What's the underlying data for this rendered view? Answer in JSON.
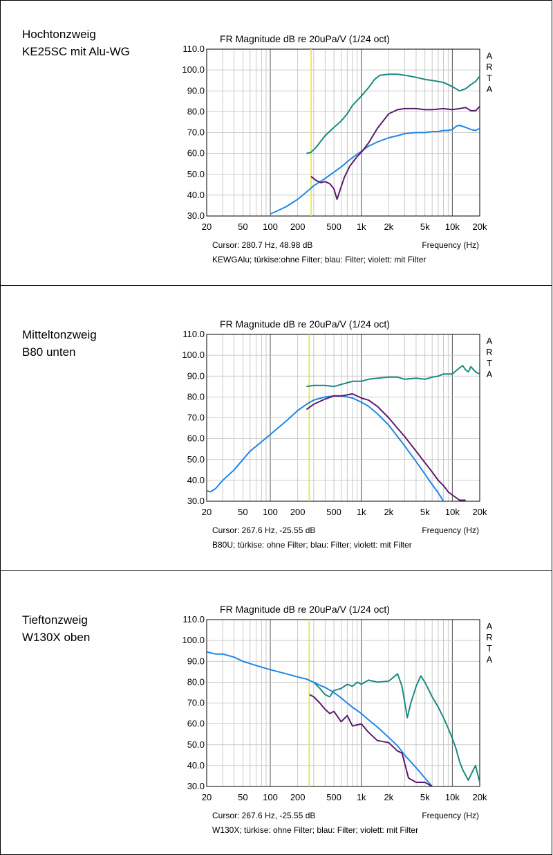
{
  "colors": {
    "tuerkis": "#1a8a80",
    "blau": "#1f86e6",
    "violett": "#5b1a6d",
    "cursor": "#e6e632",
    "grid": "#bdbdbd"
  },
  "panels": [
    {
      "title_line1": "Hochtonzweig",
      "title_line2": "KE25SC mit Alu-WG",
      "chart_data": {
        "type": "line",
        "title": "FR Magnitude dB re 20uPa/V (1/24 oct)",
        "xlabel": "Frequency (Hz)",
        "x_scale": "log",
        "xlim": [
          20,
          20000
        ],
        "ylim": [
          30,
          110
        ],
        "x_ticks": [
          "20",
          "50",
          "100",
          "200",
          "500",
          "1k",
          "2k",
          "5k",
          "10k",
          "20k"
        ],
        "y_ticks": [
          "110.0",
          "100.0",
          "90.0",
          "80.0",
          "70.0",
          "60.0",
          "50.0",
          "40.0",
          "30.0"
        ],
        "watermark": [
          "A",
          "R",
          "T",
          "A"
        ],
        "cursor_hz": 280.7,
        "cursor_text": "Cursor: 280.7 Hz, 48.98 dB",
        "info_text": "KEWGAlu; türkise:ohne Filter; blau: Filter; violett: mit Filter",
        "series": [
          {
            "name": "türkise: ohne Filter",
            "x": [
              250,
              280,
              320,
              360,
              400,
              500,
              600,
              700,
              800,
              1000,
              1200,
              1400,
              1600,
              2000,
              2500,
              3000,
              4000,
              5000,
              6000,
              7000,
              8000,
              9000,
              10000,
              11000,
              12000,
              14000,
              16000,
              18000,
              20000
            ],
            "y": [
              60,
              60.5,
              63,
              66,
              68.5,
              72.5,
              75.5,
              79,
              83,
              87.5,
              91.5,
              95.5,
              97.5,
              98,
              98,
              97.5,
              96.5,
              95.5,
              95,
              94.5,
              94,
              93,
              92,
              91,
              90,
              91,
              93,
              94.5,
              97
            ]
          },
          {
            "name": "blau: Filter",
            "x": [
              100,
              120,
              150,
              200,
              250,
              300,
              400,
              500,
              600,
              700,
              800,
              1000,
              1200,
              1500,
              2000,
              2500,
              3000,
              4000,
              5000,
              6000,
              7000,
              8000,
              9000,
              10000,
              11000,
              12000,
              14000,
              16000,
              18000,
              20000
            ],
            "y": [
              31,
              32.5,
              34.5,
              38,
              41.5,
              44.5,
              48,
              51,
              53.5,
              56,
              58,
              61,
              63.5,
              65.5,
              67.5,
              68.5,
              69.5,
              70,
              70,
              70.5,
              70.5,
              71,
              71,
              71.5,
              73,
              73.5,
              72.5,
              71.5,
              71,
              72
            ]
          },
          {
            "name": "violett: mit Filter",
            "x": [
              280,
              320,
              360,
              400,
              450,
              500,
              540,
              580,
              650,
              750,
              900,
              1000,
              1200,
              1500,
              2000,
              2500,
              3000,
              4000,
              5000,
              6000,
              8000,
              10000,
              12000,
              14000,
              16000,
              18000,
              20000
            ],
            "y": [
              49,
              47,
              46,
              46.5,
              45.5,
              43,
              38,
              42,
              48.5,
              54,
              58.5,
              60.5,
              65,
              72,
              79,
              81,
              81.5,
              81.5,
              81,
              81,
              81.5,
              81,
              81.5,
              82,
              80.5,
              80.5,
              82.5
            ]
          }
        ]
      }
    },
    {
      "title_line1": "Mitteltonzweig",
      "title_line2": "B80 unten",
      "chart_data": {
        "type": "line",
        "title": "FR Magnitude dB re 20uPa/V (1/24 oct)",
        "xlabel": "Frequency (Hz)",
        "x_scale": "log",
        "xlim": [
          20,
          20000
        ],
        "ylim": [
          30,
          110
        ],
        "x_ticks": [
          "20",
          "50",
          "100",
          "200",
          "500",
          "1k",
          "2k",
          "5k",
          "10k",
          "20k"
        ],
        "y_ticks": [
          "110.0",
          "100.0",
          "90.0",
          "80.0",
          "70.0",
          "60.0",
          "50.0",
          "40.0",
          "30.0"
        ],
        "watermark": [
          "A",
          "R",
          "T",
          "A"
        ],
        "cursor_hz": 267.6,
        "cursor_text": "Cursor: 267.6 Hz, -25.55 dB",
        "info_text": "B80U; türkise: ohne Filter; blau: Filter; violett: mit Filter",
        "series": [
          {
            "name": "türkise: ohne Filter",
            "x": [
              250,
              300,
              400,
              500,
              600,
              800,
              1000,
              1200,
              1500,
              2000,
              2500,
              3000,
              4000,
              5000,
              6000,
              7000,
              8000,
              10000,
              12000,
              13000,
              14000,
              15000,
              16000,
              18000,
              20000
            ],
            "y": [
              85,
              85.5,
              85.5,
              85,
              86,
              87.5,
              87.5,
              88.5,
              89,
              89.5,
              89.5,
              88.5,
              89,
              88.5,
              89.5,
              90,
              91,
              91,
              94,
              95,
              93,
              92,
              94.5,
              92,
              91
            ]
          },
          {
            "name": "blau: Filter",
            "x": [
              20,
              22,
              25,
              30,
              40,
              50,
              60,
              80,
              100,
              150,
              200,
              250,
              300,
              400,
              500,
              600,
              700,
              800,
              1000,
              1200,
              1500,
              2000,
              2500,
              3000,
              4000,
              5000,
              6000,
              7000,
              8000
            ],
            "y": [
              35,
              34.5,
              36,
              40,
              45,
              50,
              54,
              58.5,
              62,
              68.5,
              73.5,
              76.5,
              78.5,
              80,
              80.5,
              80.5,
              80,
              79.5,
              77.5,
              75.5,
              72,
              66.5,
              61,
              56.5,
              49,
              43,
              38,
              34,
              30
            ]
          },
          {
            "name": "violett: mit Filter",
            "x": [
              250,
              300,
              400,
              500,
              600,
              700,
              800,
              1000,
              1200,
              1500,
              2000,
              2500,
              3000,
              4000,
              5000,
              6000,
              7000,
              8000,
              9000,
              10000,
              12000,
              14000
            ],
            "y": [
              74,
              76.5,
              79,
              80.5,
              80.5,
              81,
              81.5,
              79.5,
              78.5,
              75.5,
              70,
              65,
              61,
              54,
              48.5,
              44,
              40,
              37.5,
              34.5,
              33,
              30.5,
              30.5
            ]
          }
        ]
      }
    },
    {
      "title_line1": "Tieftonzweig",
      "title_line2": "W130X oben",
      "chart_data": {
        "type": "line",
        "title": "FR Magnitude dB re 20uPa/V (1/24 oct)",
        "xlabel": "Frequency (Hz)",
        "x_scale": "log",
        "xlim": [
          20,
          20000
        ],
        "ylim": [
          30,
          110
        ],
        "x_ticks": [
          "20",
          "50",
          "100",
          "200",
          "500",
          "1k",
          "2k",
          "5k",
          "10k",
          "20k"
        ],
        "y_ticks": [
          "110.0",
          "100.0",
          "90.0",
          "80.0",
          "70.0",
          "60.0",
          "50.0",
          "40.0",
          "30.0"
        ],
        "watermark": [
          "A",
          "R",
          "T",
          "A"
        ],
        "cursor_hz": 267.6,
        "cursor_text": "Cursor: 267.6 Hz, -25.55 dB",
        "info_text": "W130X; türkise: ohne Filter; blau: Filter; violett: mit Filter",
        "series": [
          {
            "name": "türkise: ohne Filter",
            "x": [
              300,
              350,
              400,
              450,
              500,
              600,
              700,
              800,
              900,
              1000,
              1200,
              1500,
              2000,
              2500,
              2800,
              3200,
              3500,
              4000,
              4500,
              5000,
              6000,
              7000,
              8000,
              9000,
              10000,
              11000,
              12000,
              13000,
              15000,
              17000,
              18000,
              20000
            ],
            "y": [
              80,
              77,
              74,
              73,
              76,
              77,
              79,
              78,
              80,
              79,
              81,
              80,
              80.5,
              84,
              78,
              63,
              70,
              78,
              83,
              80,
              73,
              68,
              63,
              58,
              53,
              48,
              42,
              38,
              33,
              38,
              40,
              32
            ]
          },
          {
            "name": "blau: Filter",
            "x": [
              20,
              25,
              30,
              40,
              50,
              70,
              100,
              150,
              200,
              250,
              300,
              350,
              400,
              500,
              600,
              700,
              800,
              1000,
              1200,
              1500,
              2000,
              2500,
              3000,
              4000,
              5000,
              6000
            ],
            "y": [
              94.5,
              93.5,
              93.5,
              92,
              90,
              88,
              86,
              84,
              82.5,
              81.5,
              80,
              78.5,
              77.5,
              75,
              72.5,
              70,
              68,
              65,
              62,
              58.5,
              53.5,
              49.5,
              45,
              39,
              34,
              30
            ]
          },
          {
            "name": "violett: mit Filter",
            "x": [
              270,
              300,
              350,
              400,
              450,
              500,
              600,
              700,
              800,
              1000,
              1200,
              1500,
              2000,
              2500,
              2800,
              3000,
              3300,
              4000,
              5000,
              6000
            ],
            "y": [
              74,
              73,
              70,
              67,
              65,
              66,
              61,
              64,
              59,
              60,
              56,
              52,
              51,
              47,
              46,
              41,
              34,
              32,
              32,
              30
            ]
          }
        ]
      }
    }
  ]
}
